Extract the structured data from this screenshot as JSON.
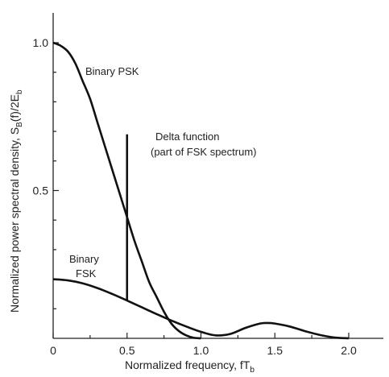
{
  "chart_data": {
    "type": "line",
    "title": "",
    "xlabel": "Normalized frequency, fT",
    "xlabel_sub": "b",
    "ylabel_prefix": "Normalized power spectral density, S",
    "ylabel_sub1": "B",
    "ylabel_mid": "(f)/2E",
    "ylabel_sub2": "b",
    "xlim": [
      0,
      2.25
    ],
    "ylim": [
      0,
      1.1
    ],
    "x_ticks": [
      {
        "value": 0,
        "label": "0"
      },
      {
        "value": 0.5,
        "label": "0.5"
      },
      {
        "value": 1.0,
        "label": "1.0"
      },
      {
        "value": 1.5,
        "label": "1.5"
      },
      {
        "value": 2.0,
        "label": "2.0"
      }
    ],
    "x_minor_ticks": [
      0.25,
      0.75,
      1.25,
      1.75
    ],
    "y_ticks": [
      {
        "value": 0.5,
        "label": "0.5"
      },
      {
        "value": 1.0,
        "label": "1.0"
      }
    ],
    "y_minor_ticks": [
      0.1,
      0.2,
      0.3,
      0.4,
      0.6,
      0.7,
      0.8,
      0.9
    ],
    "grid": false,
    "series": [
      {
        "key": "psk",
        "x": [
          0,
          0.05,
          0.1,
          0.15,
          0.2,
          0.25,
          0.3,
          0.35,
          0.4,
          0.45,
          0.5,
          0.55,
          0.6,
          0.65,
          0.7,
          0.75,
          0.8,
          0.85,
          0.9,
          0.95,
          1.0
        ],
        "y": [
          1.0,
          0.99,
          0.97,
          0.93,
          0.87,
          0.81,
          0.73,
          0.65,
          0.57,
          0.49,
          0.41,
          0.33,
          0.26,
          0.19,
          0.14,
          0.09,
          0.05,
          0.025,
          0.01,
          0.002,
          0
        ]
      },
      {
        "key": "fsk",
        "x": [
          0,
          0.1,
          0.2,
          0.3,
          0.4,
          0.5,
          0.6,
          0.7,
          0.8,
          0.9,
          1.0,
          1.1,
          1.2,
          1.3,
          1.4,
          1.45,
          1.5,
          1.6,
          1.7,
          1.8,
          1.9,
          2.0
        ],
        "y": [
          0.2,
          0.196,
          0.186,
          0.17,
          0.15,
          0.128,
          0.105,
          0.082,
          0.06,
          0.04,
          0.022,
          0.01,
          0.015,
          0.035,
          0.05,
          0.052,
          0.05,
          0.04,
          0.025,
          0.012,
          0.003,
          0
        ]
      }
    ],
    "delta": {
      "x": 0.5,
      "y_bottom": 0.13,
      "y_top": 0.69
    },
    "annotations": {
      "psk": "Binary PSK",
      "fsk_line1": "Binary",
      "fsk_line2": "FSK",
      "delta_line1": "Delta function",
      "delta_line2": "(part of FSK spectrum)"
    }
  }
}
